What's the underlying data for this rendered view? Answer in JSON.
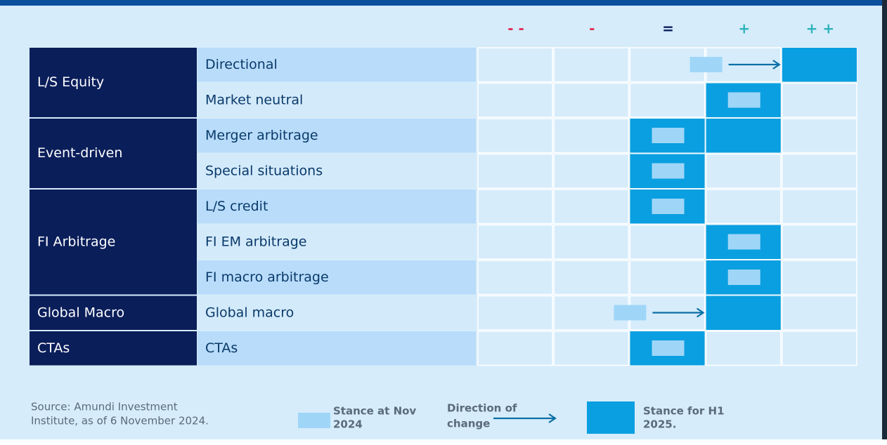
{
  "header": {
    "scale": [
      {
        "label": "- -",
        "color": "#e0315b"
      },
      {
        "label": "-",
        "color": "#e0315b"
      },
      {
        "label": "=",
        "color": "#0a1e5a"
      },
      {
        "label": "+",
        "color": "#2bb3b9"
      },
      {
        "label": "+ +",
        "color": "#2bb3b9"
      }
    ]
  },
  "table": {
    "groups": [
      {
        "name": "L/S Equity",
        "rows": [
          {
            "name": "Directional",
            "now": 2.5,
            "h1": [
              4,
              4
            ]
          },
          {
            "name": "Market neutral",
            "now": 3,
            "h1": [
              3,
              3
            ]
          }
        ]
      },
      {
        "name": "Event-driven",
        "rows": [
          {
            "name": "Merger arbitrage",
            "now": 2,
            "h1": [
              2,
              3
            ]
          },
          {
            "name": "Special situations",
            "now": 2,
            "h1": [
              2,
              2
            ]
          }
        ]
      },
      {
        "name": "FI Arbitrage",
        "rows": [
          {
            "name": "L/S credit",
            "now": 2,
            "h1": [
              2,
              2
            ]
          },
          {
            "name": "FI EM arbitrage",
            "now": 3,
            "h1": [
              3,
              3
            ]
          },
          {
            "name": "FI macro arbitrage",
            "now": 3,
            "h1": [
              3,
              3
            ]
          }
        ]
      },
      {
        "name": "Global Macro",
        "rows": [
          {
            "name": "Global macro",
            "now": 1.5,
            "h1": [
              3,
              3
            ]
          }
        ]
      },
      {
        "name": "CTAs",
        "rows": [
          {
            "name": "CTAs",
            "now": 2,
            "h1": [
              2,
              2
            ]
          }
        ]
      }
    ]
  },
  "footer": {
    "source": [
      "Source: Amundi Investment",
      "Institute, as of 6 November 2024."
    ],
    "legend": {
      "now": [
        "Stance at Nov",
        "2024"
      ],
      "arrow": [
        "Direction of",
        "change"
      ],
      "h1": [
        "Stance for H1",
        "2025."
      ]
    }
  }
}
